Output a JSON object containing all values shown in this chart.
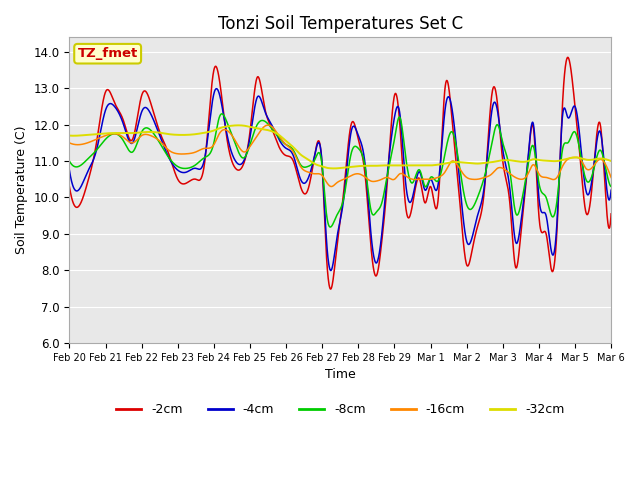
{
  "title": "Tonzi Soil Temperatures Set C",
  "xlabel": "Time",
  "ylabel": "Soil Temperature (C)",
  "ylim": [
    6.0,
    14.4
  ],
  "annotation_text": "TZ_fmet",
  "annotation_color": "#cc0000",
  "annotation_bg": "#ffffcc",
  "annotation_border": "#cccc00",
  "bg_color": "#e8e8e8",
  "line_colors": {
    "-2cm": "#dd0000",
    "-4cm": "#0000cc",
    "-8cm": "#00cc00",
    "-16cm": "#ff8800",
    "-32cm": "#dddd00"
  },
  "legend_labels": [
    "-2cm",
    "-4cm",
    "-8cm",
    "-16cm",
    "-32cm"
  ],
  "x_tick_labels": [
    "Feb 20",
    "Feb 21",
    "Feb 22",
    "Feb 23",
    "Feb 24",
    "Feb 25",
    "Feb 26",
    "Feb 27",
    "Feb 28",
    "Feb 29",
    "Mar 1",
    "Mar 2",
    "Mar 3",
    "Mar 4",
    "Mar 5",
    "Mar 6"
  ],
  "grid_color": "#ffffff",
  "title_fontsize": 12
}
